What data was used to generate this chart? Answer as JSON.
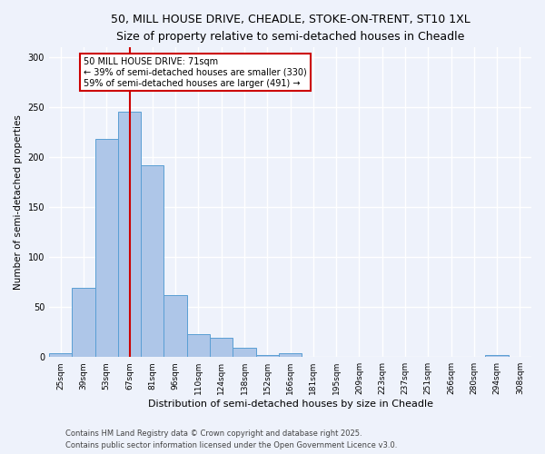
{
  "title_line1": "50, MILL HOUSE DRIVE, CHEADLE, STOKE-ON-TRENT, ST10 1XL",
  "title_line2": "Size of property relative to semi-detached houses in Cheadle",
  "xlabel": "Distribution of semi-detached houses by size in Cheadle",
  "ylabel": "Number of semi-detached properties",
  "bin_labels": [
    "25sqm",
    "39sqm",
    "53sqm",
    "67sqm",
    "81sqm",
    "96sqm",
    "110sqm",
    "124sqm",
    "138sqm",
    "152sqm",
    "166sqm",
    "181sqm",
    "195sqm",
    "209sqm",
    "223sqm",
    "237sqm",
    "251sqm",
    "266sqm",
    "280sqm",
    "294sqm",
    "308sqm"
  ],
  "bar_values": [
    4,
    69,
    218,
    246,
    192,
    62,
    23,
    19,
    9,
    2,
    4,
    0,
    0,
    0,
    0,
    0,
    0,
    0,
    0,
    2,
    0
  ],
  "bar_color": "#aec6e8",
  "bar_edge_color": "#5a9fd4",
  "property_bin_index": 3,
  "vline_color": "#cc0000",
  "annotation_text": "50 MILL HOUSE DRIVE: 71sqm\n← 39% of semi-detached houses are smaller (330)\n59% of semi-detached houses are larger (491) →",
  "annotation_box_color": "#ffffff",
  "annotation_box_edge": "#cc0000",
  "footer_line1": "Contains HM Land Registry data © Crown copyright and database right 2025.",
  "footer_line2": "Contains public sector information licensed under the Open Government Licence v3.0.",
  "ylim": [
    0,
    310
  ],
  "background_color": "#eef2fb",
  "grid_color": "#ffffff",
  "title_fontsize": 9,
  "subtitle_fontsize": 8,
  "xlabel_fontsize": 8,
  "ylabel_fontsize": 7.5,
  "tick_fontsize": 6.5,
  "footer_fontsize": 6,
  "annotation_fontsize": 7
}
